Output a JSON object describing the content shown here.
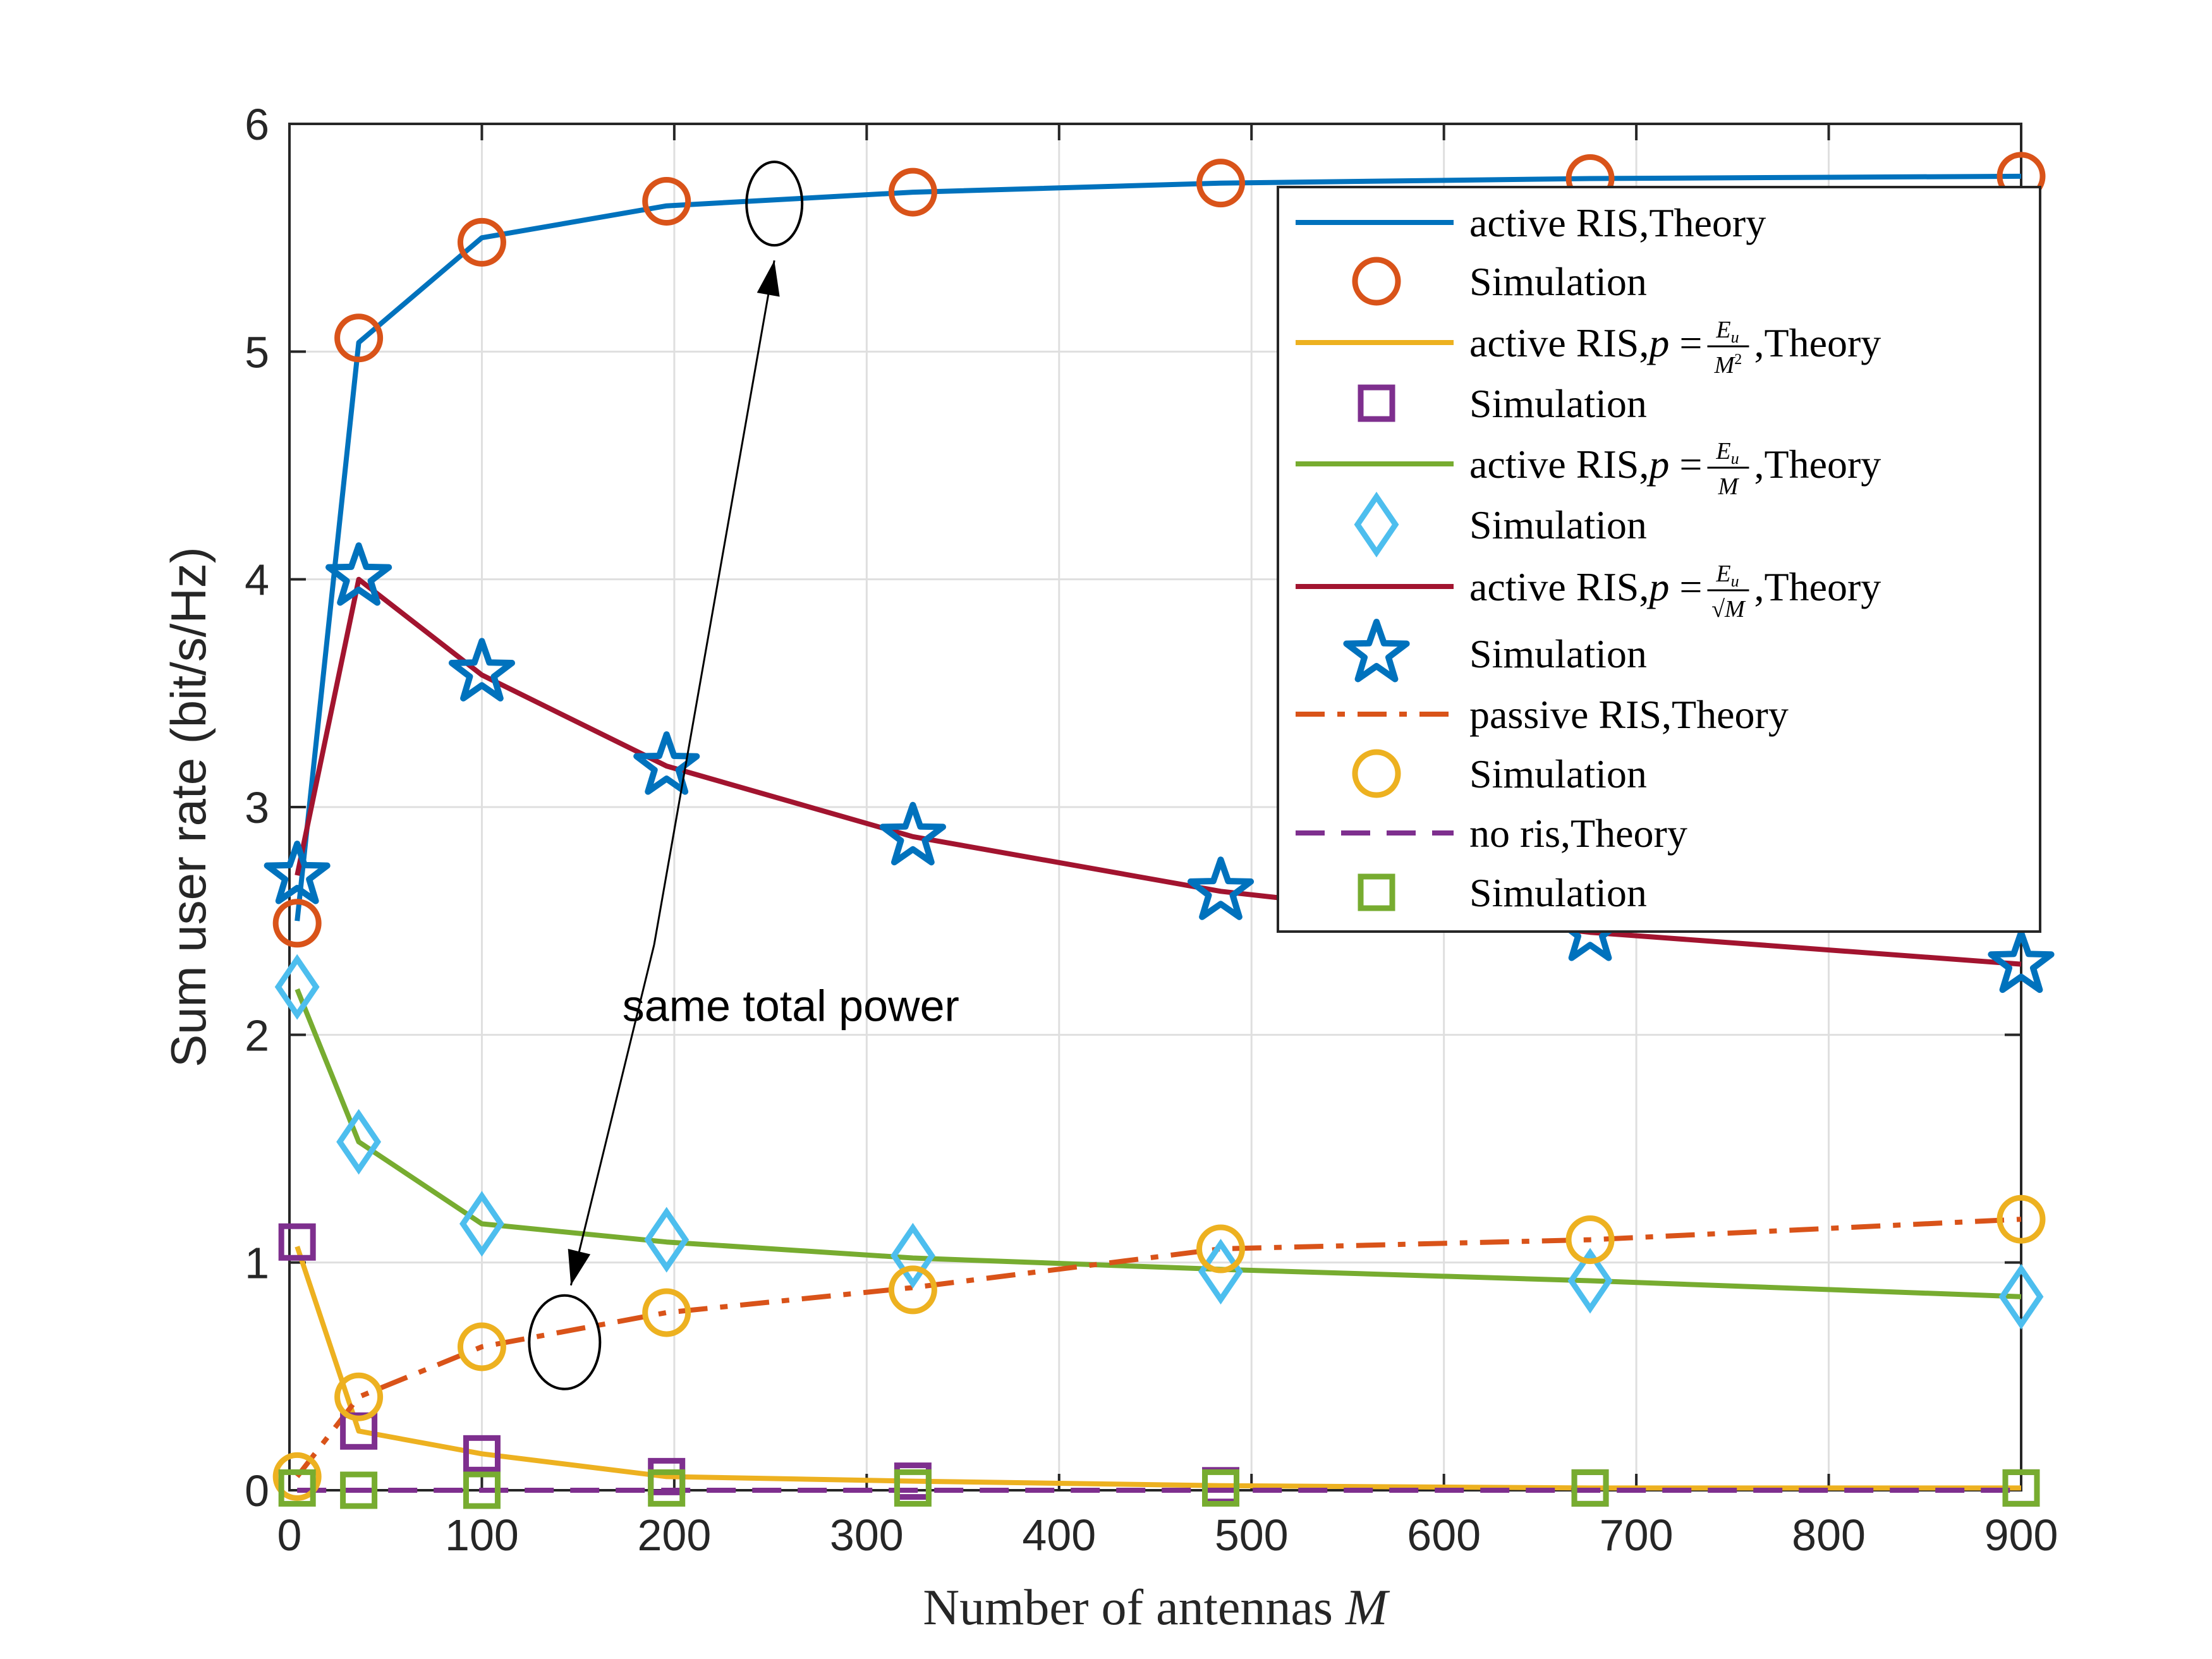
{
  "chart_data": {
    "type": "line",
    "xlabel": "Number of antennas",
    "xlabel_var": "M",
    "ylabel": "Sum user rate (bit/s/Hz)",
    "xlim": [
      0,
      900
    ],
    "ylim": [
      0,
      6
    ],
    "xticks": [
      0,
      100,
      200,
      300,
      400,
      500,
      600,
      700,
      800,
      900
    ],
    "yticks": [
      0,
      1,
      2,
      3,
      4,
      5,
      6
    ],
    "grid": true,
    "legend_position": "top-right",
    "x": [
      4,
      36,
      100,
      196,
      324,
      484,
      676,
      900
    ],
    "series": [
      {
        "name": "active RIS,Theory",
        "kind": "theory",
        "color": "#0072BD",
        "dash": "solid",
        "values": [
          2.5,
          5.04,
          5.5,
          5.64,
          5.7,
          5.74,
          5.76,
          5.77
        ]
      },
      {
        "name": "Simulation",
        "kind": "simulation",
        "marker": "circle",
        "color": "#D95319",
        "values": [
          2.49,
          5.06,
          5.48,
          5.66,
          5.7,
          5.74,
          5.76,
          5.77
        ]
      },
      {
        "name": "active RIS,",
        "math": "p = Eu/M^2",
        "suffix": ",Theory",
        "kind": "theory",
        "color": "#EDB120",
        "dash": "solid",
        "values": [
          1.07,
          0.26,
          0.16,
          0.06,
          0.04,
          0.02,
          0.01,
          0.01
        ]
      },
      {
        "name": "Simulation",
        "kind": "simulation",
        "marker": "square",
        "color": "#7E2F8E",
        "values": [
          1.09,
          0.26,
          0.16,
          0.06,
          0.04,
          0.02,
          0.01,
          0.01
        ]
      },
      {
        "name": "active RIS,",
        "math": "p = Eu/M",
        "suffix": ",Theory",
        "kind": "theory",
        "color": "#77AC30",
        "dash": "solid",
        "values": [
          2.2,
          1.53,
          1.17,
          1.09,
          1.02,
          0.97,
          0.92,
          0.85
        ]
      },
      {
        "name": "Simulation",
        "kind": "simulation",
        "marker": "diamond",
        "color": "#4DBEEE",
        "values": [
          2.21,
          1.53,
          1.17,
          1.1,
          1.03,
          0.96,
          0.92,
          0.85
        ]
      },
      {
        "name": "active RIS,",
        "math": "p = Eu/sqrt(M)",
        "suffix": ",Theory",
        "kind": "theory",
        "color": "#A2142F",
        "dash": "solid",
        "values": [
          2.7,
          4.0,
          3.58,
          3.18,
          2.87,
          2.63,
          2.45,
          2.31
        ]
      },
      {
        "name": "Simulation",
        "kind": "simulation",
        "marker": "star",
        "color": "#0072BD",
        "values": [
          2.7,
          4.01,
          3.59,
          3.18,
          2.87,
          2.63,
          2.45,
          2.31
        ]
      },
      {
        "name": "passive RIS,Theory",
        "kind": "theory",
        "color": "#D95319",
        "dash": "dashdot",
        "values": [
          0.06,
          0.41,
          0.63,
          0.78,
          0.89,
          1.06,
          1.1,
          1.19
        ]
      },
      {
        "name": "Simulation",
        "kind": "simulation",
        "marker": "circle",
        "color": "#EDB120",
        "values": [
          0.06,
          0.41,
          0.63,
          0.78,
          0.88,
          1.06,
          1.1,
          1.19
        ]
      },
      {
        "name": "no ris,Theory",
        "kind": "theory",
        "color": "#7E2F8E",
        "dash": "dashed",
        "values": [
          0.0,
          0.0,
          0.0,
          0.0,
          0.0,
          0.0,
          0.0,
          0.0
        ]
      },
      {
        "name": "Simulation",
        "kind": "simulation",
        "marker": "square",
        "color": "#77AC30",
        "values": [
          0.01,
          0.0,
          0.0,
          0.01,
          0.01,
          0.01,
          0.01,
          0.01
        ]
      }
    ],
    "annotations": [
      {
        "text": "same total power",
        "ellipse_upper_at": [
          252,
          5.65
        ],
        "ellipse_lower_at": [
          143,
          0.65
        ],
        "text_anchor_at": [
          300,
          2.2
        ]
      }
    ]
  }
}
